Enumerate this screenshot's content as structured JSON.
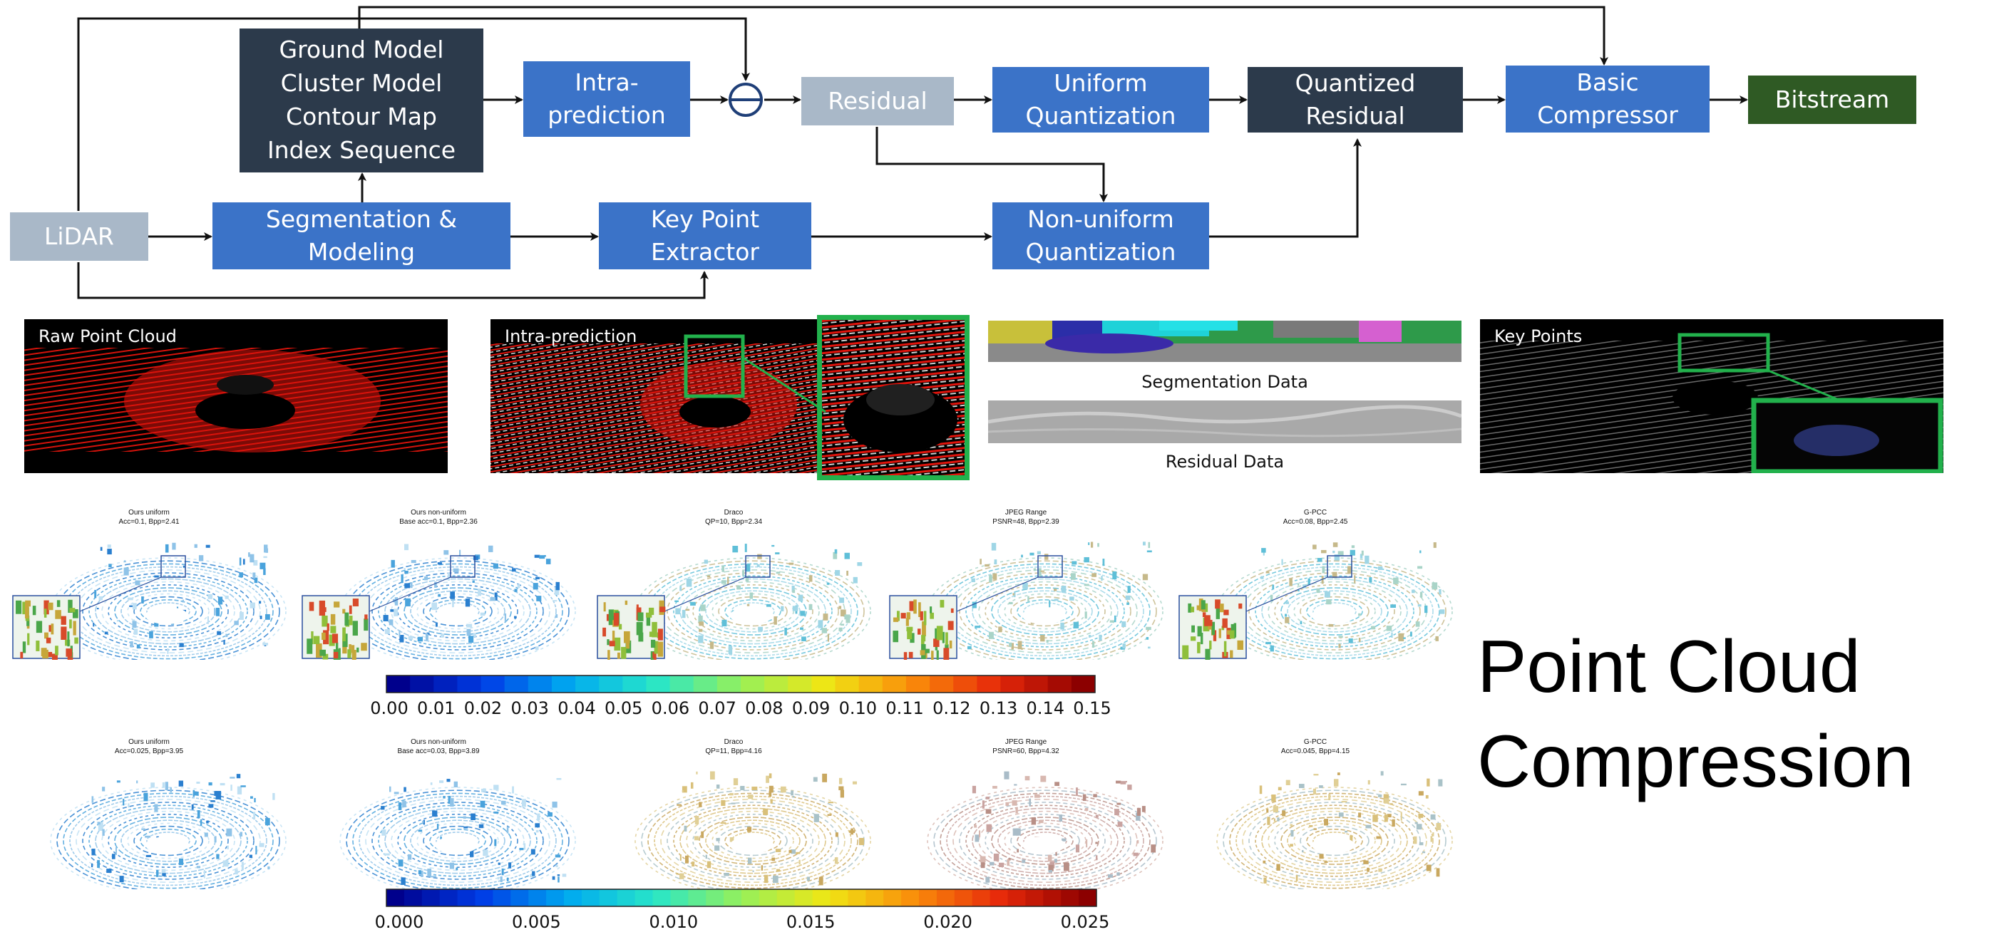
{
  "pipeline": {
    "lidar": "LiDAR",
    "segmentation": "Segmentation &\nModeling",
    "key_point_extractor": "Key Point\nExtractor",
    "model_outputs": "Ground Model\nCluster Model\nContour Map\nIndex Sequence",
    "intra_prediction": "Intra-\nprediction",
    "residual": "Residual",
    "uniform_quantization": "Uniform\nQuantization",
    "non_uniform_quantization": "Non-uniform\nQuantization",
    "quantized_residual": "Quantized\nResidual",
    "basic_compressor": "Basic\nCompressor",
    "bitstream": "Bitstream"
  },
  "panels": {
    "raw_point_cloud": "Raw Point Cloud",
    "intra_prediction": "Intra-prediction",
    "segmentation_data": "Segmentation Data",
    "residual_data": "Residual Data",
    "key_points": "Key Points"
  },
  "comparison_rows": [
    {
      "plots": [
        {
          "title": "Ours uniform",
          "subtitle": "Acc=0.1, Bpp=2.41",
          "colormap": "blue"
        },
        {
          "title": "Ours non-uniform",
          "subtitle": "Base acc=0.1, Bpp=2.36",
          "colormap": "blue"
        },
        {
          "title": "Draco",
          "subtitle": "QP=10, Bpp=2.34",
          "colormap": "cyan"
        },
        {
          "title": "JPEG Range",
          "subtitle": "PSNR=48, Bpp=2.39",
          "colormap": "cyan"
        },
        {
          "title": "G-PCC",
          "subtitle": "Acc=0.08, Bpp=2.45",
          "colormap": "cyan"
        }
      ],
      "colorbar_ticks": [
        "0.00",
        "0.01",
        "0.02",
        "0.03",
        "0.04",
        "0.05",
        "0.06",
        "0.07",
        "0.08",
        "0.09",
        "0.10",
        "0.11",
        "0.12",
        "0.13",
        "0.14",
        "0.15"
      ]
    },
    {
      "plots": [
        {
          "title": "Ours uniform",
          "subtitle": "Acc=0.025, Bpp=3.95",
          "colormap": "blue"
        },
        {
          "title": "Ours non-uniform",
          "subtitle": "Base acc=0.03, Bpp=3.89",
          "colormap": "blue"
        },
        {
          "title": "Draco",
          "subtitle": "QP=11, Bpp=4.16",
          "colormap": "gold"
        },
        {
          "title": "JPEG Range",
          "subtitle": "PSNR=60, Bpp=4.32",
          "colormap": "brown"
        },
        {
          "title": "G-PCC",
          "subtitle": "Acc=0.045, Bpp=4.15",
          "colormap": "gold"
        }
      ],
      "colorbar_ticks": [
        "0.000",
        "0.005",
        "0.010",
        "0.015",
        "0.020",
        "0.025"
      ]
    }
  ],
  "title": "Point Cloud\nCompression",
  "colors": {
    "box_blue": "#3b73c8",
    "box_dark": "#2c3a4b",
    "box_light": "#a9b8c8",
    "bitstream_green": "#2f5a24",
    "highlight_green": "#22b14c",
    "inset_blue": "#2a4f9e"
  }
}
